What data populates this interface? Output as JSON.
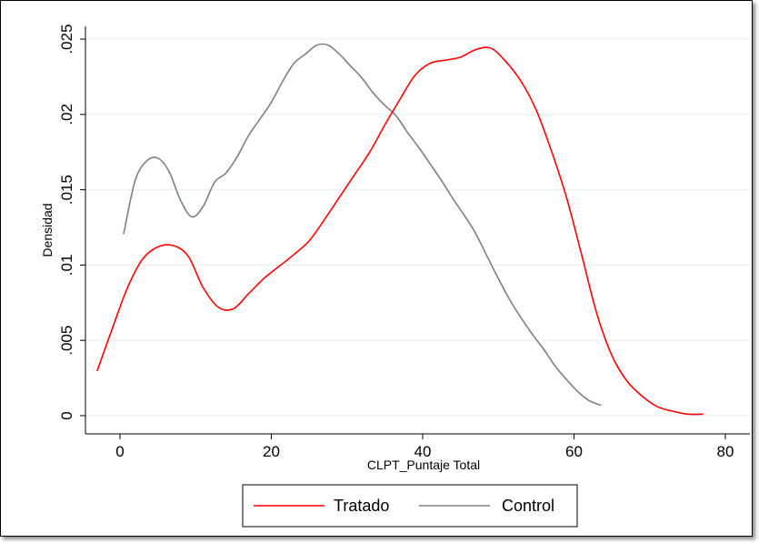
{
  "chart_data": {
    "type": "line",
    "title": "",
    "xlabel": "CLPT_Puntaje Total",
    "ylabel": "Densidad",
    "xlim": [
      -4,
      80
    ],
    "ylim": [
      0,
      0.025
    ],
    "x_ticks": [
      0,
      20,
      40,
      60,
      80
    ],
    "x_tick_labels": [
      "0",
      "20",
      "40",
      "60",
      "80"
    ],
    "y_ticks": [
      0,
      0.005,
      0.01,
      0.015,
      0.02,
      0.025
    ],
    "y_tick_labels": [
      "0",
      ".005",
      ".01",
      ".015",
      ".02",
      ".025"
    ],
    "grid": "horizontal",
    "legend_position": "bottom",
    "series": [
      {
        "name": "Tratado",
        "color": "#ff0000",
        "x": [
          -3,
          -1,
          1,
          3,
          5,
          7,
          9,
          11,
          13,
          15,
          17,
          19,
          21,
          23,
          25,
          27,
          29,
          31,
          33,
          35,
          37,
          39,
          41,
          43,
          45,
          47,
          49,
          51,
          53,
          55,
          57,
          59,
          61,
          63,
          65,
          67,
          69,
          71,
          73,
          75,
          77
        ],
        "y": [
          0.003,
          0.0058,
          0.0085,
          0.0104,
          0.0112,
          0.0113,
          0.0106,
          0.0085,
          0.0072,
          0.0071,
          0.0081,
          0.0091,
          0.0099,
          0.0107,
          0.0116,
          0.013,
          0.0145,
          0.016,
          0.0175,
          0.0193,
          0.021,
          0.0226,
          0.0234,
          0.0236,
          0.0238,
          0.0243,
          0.0244,
          0.0235,
          0.0222,
          0.0203,
          0.0176,
          0.0145,
          0.0107,
          0.0068,
          0.004,
          0.0023,
          0.0013,
          0.0006,
          0.0003,
          0.0001,
          0.0001
        ]
      },
      {
        "name": "Control",
        "color": "#808080",
        "x": [
          0.5,
          2,
          3.5,
          5,
          6.5,
          8,
          9.5,
          11,
          12.5,
          14,
          15.5,
          17,
          18.5,
          20,
          21.5,
          23,
          24.5,
          26,
          27.5,
          29,
          30.5,
          32,
          33.5,
          35,
          36.5,
          38,
          39.5,
          41,
          42.5,
          44,
          45.5,
          47,
          48.5,
          50,
          51.5,
          53,
          54.5,
          56,
          57.5,
          59,
          60.5,
          62,
          63.5
        ],
        "y": [
          0.0121,
          0.0156,
          0.0169,
          0.0171,
          0.0162,
          0.0143,
          0.0132,
          0.0139,
          0.0155,
          0.0161,
          0.0172,
          0.0186,
          0.0197,
          0.0208,
          0.0222,
          0.0234,
          0.024,
          0.0246,
          0.0246,
          0.024,
          0.0232,
          0.0224,
          0.0214,
          0.0206,
          0.0199,
          0.0188,
          0.0178,
          0.0167,
          0.0156,
          0.0144,
          0.0133,
          0.0121,
          0.0106,
          0.0091,
          0.0077,
          0.0065,
          0.0054,
          0.0044,
          0.0033,
          0.0024,
          0.0016,
          0.001,
          0.0007
        ]
      }
    ]
  }
}
